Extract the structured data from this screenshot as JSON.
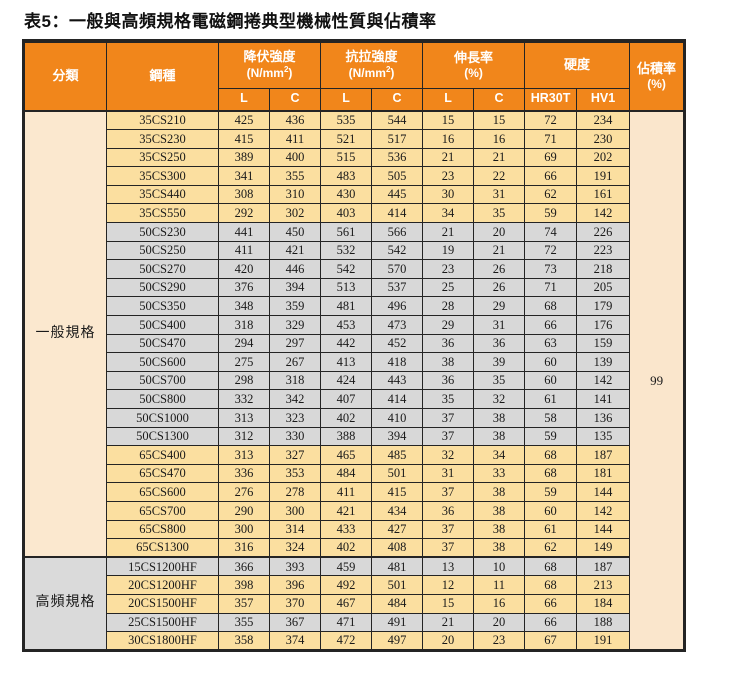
{
  "title": "表5：一般與高頻規格電磁鋼捲典型機械性質與佔積率",
  "header": {
    "classification": "分類",
    "grade": "鋼種",
    "yield_label": "降伏強度",
    "yield_unit_prefix": "(N/mm",
    "yield_unit_sup": "2",
    "yield_unit_suffix": ")",
    "tensile_label": "抗拉強度",
    "tensile_unit_prefix": "(N/mm",
    "tensile_unit_sup": "2",
    "tensile_unit_suffix": ")",
    "elongation_label": "伸長率",
    "elongation_unit": "(%)",
    "hardness_label": "硬度",
    "stacking_label": "佔積率",
    "stacking_unit": "(%)",
    "sub": [
      "L",
      "C",
      "L",
      "C",
      "L",
      "C",
      "HR30T",
      "HV1"
    ]
  },
  "stacking_value": "99",
  "sections": [
    {
      "label": "一般規格",
      "side_tone": "peach",
      "rows": [
        {
          "grade": "35CS210",
          "tone": "yellow",
          "values": [
            "425",
            "436",
            "535",
            "544",
            "15",
            "15",
            "72",
            "234"
          ]
        },
        {
          "grade": "35CS230",
          "tone": "yellow",
          "values": [
            "415",
            "411",
            "521",
            "517",
            "16",
            "16",
            "71",
            "230"
          ]
        },
        {
          "grade": "35CS250",
          "tone": "yellow",
          "values": [
            "389",
            "400",
            "515",
            "536",
            "21",
            "21",
            "69",
            "202"
          ]
        },
        {
          "grade": "35CS300",
          "tone": "yellow",
          "values": [
            "341",
            "355",
            "483",
            "505",
            "23",
            "22",
            "66",
            "191"
          ]
        },
        {
          "grade": "35CS440",
          "tone": "yellow",
          "values": [
            "308",
            "310",
            "430",
            "445",
            "30",
            "31",
            "62",
            "161"
          ]
        },
        {
          "grade": "35CS550",
          "tone": "yellow",
          "values": [
            "292",
            "302",
            "403",
            "414",
            "34",
            "35",
            "59",
            "142"
          ]
        },
        {
          "grade": "50CS230",
          "tone": "gray",
          "values": [
            "441",
            "450",
            "561",
            "566",
            "21",
            "20",
            "74",
            "226"
          ]
        },
        {
          "grade": "50CS250",
          "tone": "gray",
          "values": [
            "411",
            "421",
            "532",
            "542",
            "19",
            "21",
            "72",
            "223"
          ]
        },
        {
          "grade": "50CS270",
          "tone": "gray",
          "values": [
            "420",
            "446",
            "542",
            "570",
            "23",
            "26",
            "73",
            "218"
          ]
        },
        {
          "grade": "50CS290",
          "tone": "gray",
          "values": [
            "376",
            "394",
            "513",
            "537",
            "25",
            "26",
            "71",
            "205"
          ]
        },
        {
          "grade": "50CS350",
          "tone": "gray",
          "values": [
            "348",
            "359",
            "481",
            "496",
            "28",
            "29",
            "68",
            "179"
          ]
        },
        {
          "grade": "50CS400",
          "tone": "gray",
          "values": [
            "318",
            "329",
            "453",
            "473",
            "29",
            "31",
            "66",
            "176"
          ]
        },
        {
          "grade": "50CS470",
          "tone": "gray",
          "values": [
            "294",
            "297",
            "442",
            "452",
            "36",
            "36",
            "63",
            "159"
          ]
        },
        {
          "grade": "50CS600",
          "tone": "gray",
          "values": [
            "275",
            "267",
            "413",
            "418",
            "38",
            "39",
            "60",
            "139"
          ]
        },
        {
          "grade": "50CS700",
          "tone": "gray",
          "values": [
            "298",
            "318",
            "424",
            "443",
            "36",
            "35",
            "60",
            "142"
          ]
        },
        {
          "grade": "50CS800",
          "tone": "gray",
          "values": [
            "332",
            "342",
            "407",
            "414",
            "35",
            "32",
            "61",
            "141"
          ]
        },
        {
          "grade": "50CS1000",
          "tone": "gray",
          "values": [
            "313",
            "323",
            "402",
            "410",
            "37",
            "38",
            "58",
            "136"
          ]
        },
        {
          "grade": "50CS1300",
          "tone": "gray",
          "values": [
            "312",
            "330",
            "388",
            "394",
            "37",
            "38",
            "59",
            "135"
          ]
        },
        {
          "grade": "65CS400",
          "tone": "yellow",
          "values": [
            "313",
            "327",
            "465",
            "485",
            "32",
            "34",
            "68",
            "187"
          ]
        },
        {
          "grade": "65CS470",
          "tone": "yellow",
          "values": [
            "336",
            "353",
            "484",
            "501",
            "31",
            "33",
            "68",
            "181"
          ]
        },
        {
          "grade": "65CS600",
          "tone": "yellow",
          "values": [
            "276",
            "278",
            "411",
            "415",
            "37",
            "38",
            "59",
            "144"
          ]
        },
        {
          "grade": "65CS700",
          "tone": "yellow",
          "values": [
            "290",
            "300",
            "421",
            "434",
            "36",
            "38",
            "60",
            "142"
          ]
        },
        {
          "grade": "65CS800",
          "tone": "yellow",
          "values": [
            "300",
            "314",
            "433",
            "427",
            "37",
            "38",
            "61",
            "144"
          ]
        },
        {
          "grade": "65CS1300",
          "tone": "yellow",
          "values": [
            "316",
            "324",
            "402",
            "408",
            "37",
            "38",
            "62",
            "149"
          ]
        }
      ]
    },
    {
      "label": "高頻規格",
      "side_tone": "gray",
      "rows": [
        {
          "grade": "15CS1200HF",
          "tone": "gray",
          "values": [
            "366",
            "393",
            "459",
            "481",
            "13",
            "10",
            "68",
            "187"
          ]
        },
        {
          "grade": "20CS1200HF",
          "tone": "yellow",
          "values": [
            "398",
            "396",
            "492",
            "501",
            "12",
            "11",
            "68",
            "213"
          ]
        },
        {
          "grade": "20CS1500HF",
          "tone": "yellow",
          "values": [
            "357",
            "370",
            "467",
            "484",
            "15",
            "16",
            "66",
            "184"
          ]
        },
        {
          "grade": "25CS1500HF",
          "tone": "gray",
          "values": [
            "355",
            "367",
            "471",
            "491",
            "21",
            "20",
            "66",
            "188"
          ]
        },
        {
          "grade": "30CS1800HF",
          "tone": "yellow",
          "values": [
            "358",
            "374",
            "472",
            "497",
            "20",
            "23",
            "67",
            "191"
          ]
        }
      ]
    }
  ],
  "colors": {
    "header_bg": "#F1861B",
    "header_text": "#FFFFFF",
    "row_yellow": "#FBDFA0",
    "row_gray": "#D8D8D8",
    "side_peach": "#FBE8CF",
    "side_gray": "#DADADA",
    "stacking_bg": "#FAE6CC",
    "border": "#242424",
    "text": "#1A1A1A"
  }
}
